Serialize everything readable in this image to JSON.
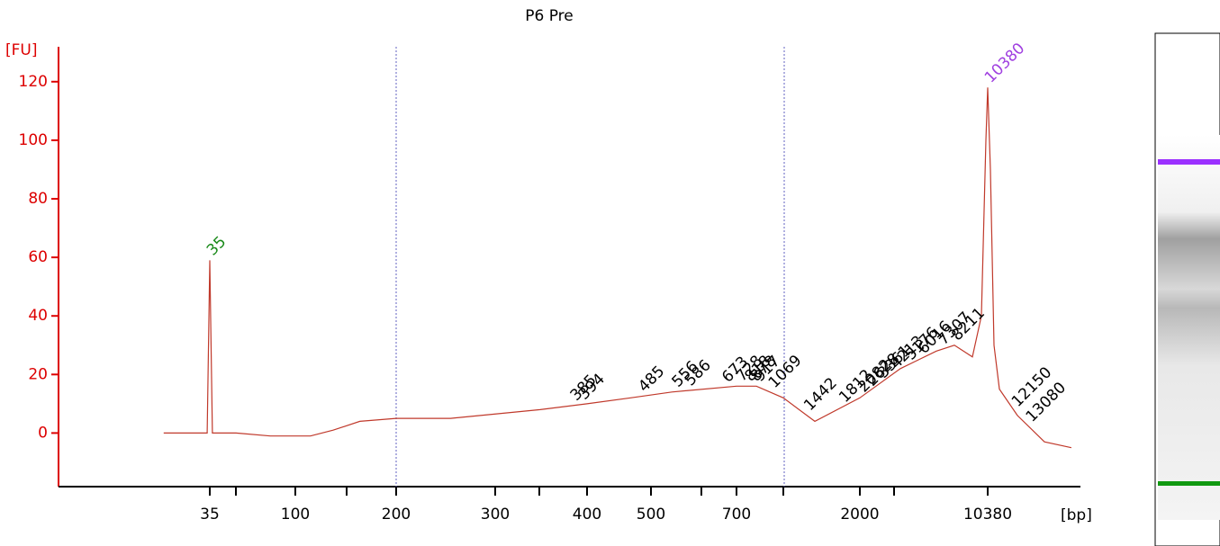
{
  "chart_data": {
    "type": "line",
    "title": "P6 Pre",
    "y_label": "[FU]",
    "x_label": "[bp]",
    "color": "#c0392b",
    "ylim": [
      -18,
      131
    ],
    "yticks": [
      0,
      20,
      40,
      60,
      80,
      100,
      120
    ],
    "xticks": [
      35,
      100,
      200,
      300,
      400,
      500,
      700,
      2000,
      10380
    ],
    "x": [
      0,
      33,
      35,
      37,
      55,
      81,
      100,
      115,
      137.5,
      164,
      200,
      255,
      349,
      400,
      468,
      549,
      700,
      910,
      1193,
      1526,
      2000,
      4655,
      7015,
      8195,
      9375,
      9965,
      10260,
      10380,
      10557,
      10792,
      11145,
      12325,
      14095,
      15865
    ],
    "values": [
      0,
      0,
      59,
      0,
      0,
      -1,
      -1,
      -1,
      1,
      4,
      5,
      5,
      8,
      10,
      12,
      14,
      16,
      16,
      12,
      4,
      12,
      22,
      28,
      30,
      26,
      40,
      100,
      118,
      90,
      30,
      15,
      6,
      -3,
      -5
    ],
    "peak_labels": {
      "values": [
        35,
        385,
        394,
        485,
        556,
        586,
        673,
        728,
        818,
        878,
        917,
        1069,
        1442,
        1812,
        2082,
        2628,
        3361,
        4213,
        5176,
        6016,
        7307,
        8211,
        10380,
        12150,
        13080
      ],
      "colors": [
        "#1a8a1a",
        "#000",
        "#000",
        "#000",
        "#000",
        "#000",
        "#000",
        "#000",
        "#000",
        "#000",
        "#000",
        "#000",
        "#000",
        "#000",
        "#000",
        "#000",
        "#000",
        "#000",
        "#000",
        "#000",
        "#000",
        "#000",
        "#a040e0",
        "#000",
        "#000"
      ]
    }
  }
}
